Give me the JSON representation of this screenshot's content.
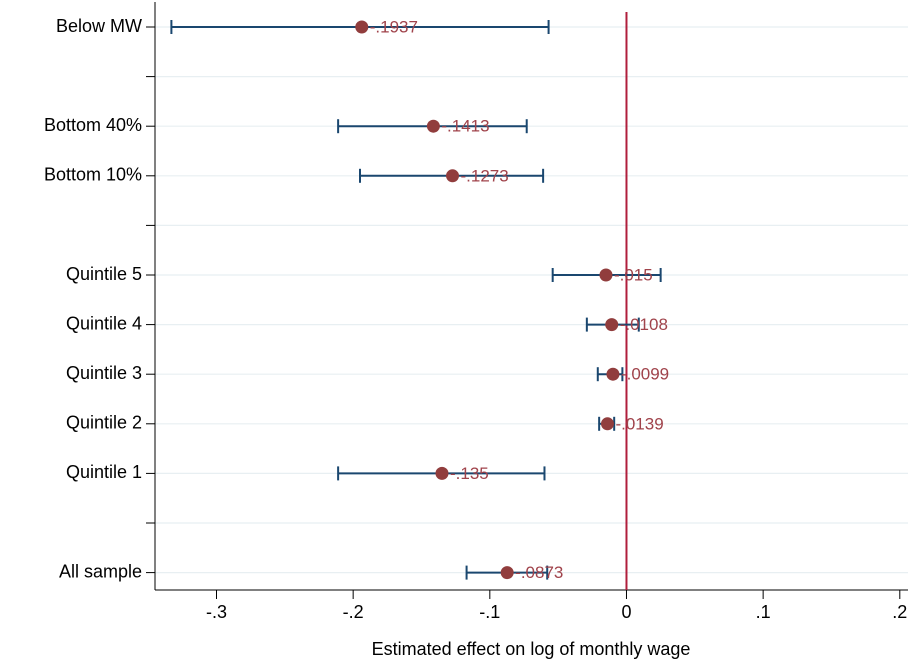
{
  "chart_data": {
    "type": "coefplot",
    "xlabel": "Estimated effect on log of monthly wage",
    "categories": [
      "Below MW",
      null,
      "Bottom 40%",
      "Bottom 10%",
      null,
      "Quintile 5",
      "Quintile 4",
      "Quintile 3",
      "Quintile 2",
      "Quintile 1",
      null,
      "All sample"
    ],
    "values": [
      -0.1937,
      null,
      -0.1413,
      -0.1273,
      null,
      -0.015,
      -0.0108,
      -0.0099,
      -0.0139,
      -0.135,
      null,
      -0.0873
    ],
    "value_labels": [
      "-.1937",
      null,
      "-.1413",
      "-.1273",
      null,
      "-.015",
      "-.0108",
      "-.0099",
      "-.0139",
      "-.135",
      null,
      "-.0873"
    ],
    "lower": [
      -0.333,
      null,
      -0.211,
      -0.195,
      null,
      -0.054,
      -0.029,
      -0.021,
      -0.02,
      -0.211,
      null,
      -0.117
    ],
    "upper": [
      -0.057,
      null,
      -0.073,
      -0.061,
      null,
      0.025,
      0.009,
      -0.003,
      -0.009,
      -0.06,
      null,
      -0.058
    ],
    "marker_color": "#913d3d",
    "ci_color": "#1a476f",
    "label_color": "#a0434b",
    "xref": 0,
    "xref_color": "#b01e3c",
    "xlim": [
      -0.345,
      0.206
    ],
    "xticks": [
      {
        "value": -0.3,
        "label": "-.3"
      },
      {
        "value": -0.2,
        "label": "-.2"
      },
      {
        "value": -0.1,
        "label": "-.1"
      },
      0,
      {
        "value": 0.1,
        "label": ".1"
      },
      {
        "value": 0.2,
        "label": ".2"
      }
    ],
    "grid": true
  }
}
